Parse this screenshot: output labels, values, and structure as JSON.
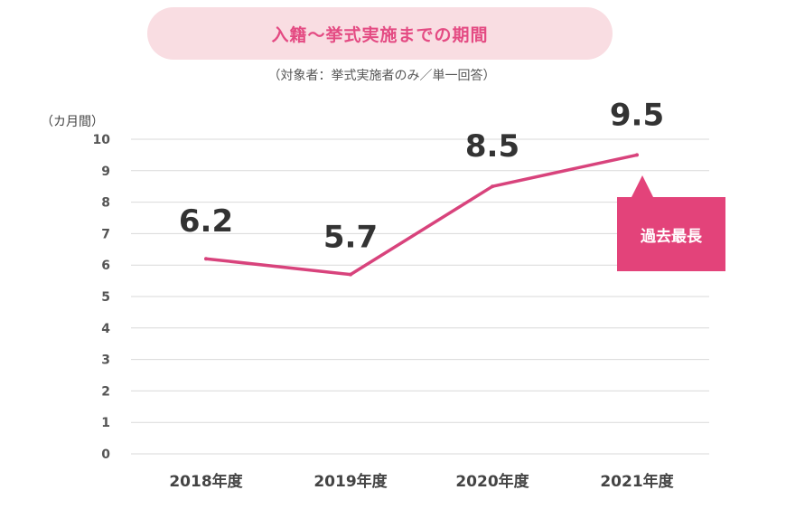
{
  "chart_data": {
    "type": "line",
    "title": "入籍～挙式実施までの期間",
    "subtitle": "（対象者：挙式実施者のみ／単一回答）",
    "ylabel": "（カ月間）",
    "xlabel": "",
    "ylim": [
      0,
      10
    ],
    "yticks": [
      "0",
      "1",
      "2",
      "3",
      "4",
      "5",
      "6",
      "7",
      "8",
      "9",
      "10"
    ],
    "categories": [
      "2018年度",
      "2019年度",
      "2020年度",
      "2021年度"
    ],
    "values": [
      6.2,
      5.7,
      8.5,
      9.5
    ],
    "data_labels": [
      "6.2",
      "5.7",
      "8.5",
      "9.5"
    ],
    "annotation": "過去最長",
    "grid": true,
    "line_color": "#d8437c",
    "accent_color": "#e3437a"
  }
}
